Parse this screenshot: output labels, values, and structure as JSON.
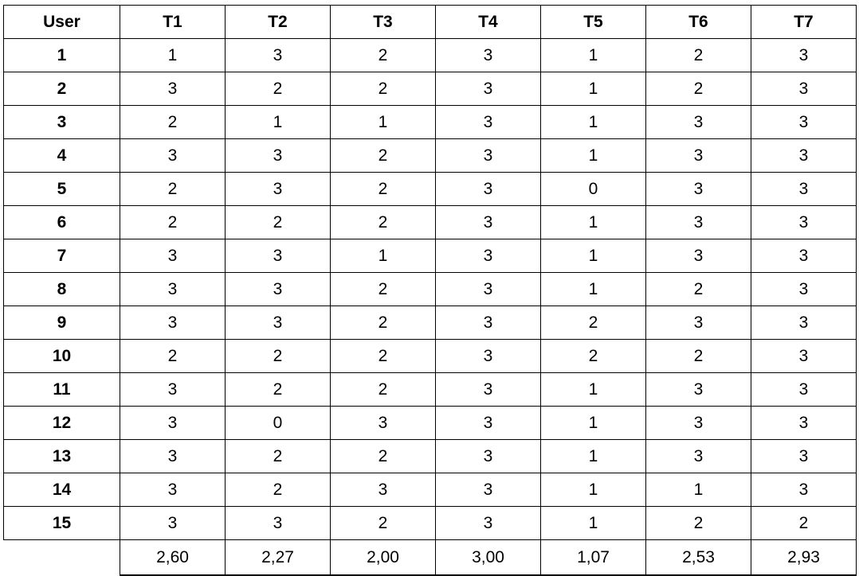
{
  "table": {
    "headers": [
      "User",
      "T1",
      "T2",
      "T3",
      "T4",
      "T5",
      "T6",
      "T7"
    ],
    "rows": [
      [
        "1",
        "1",
        "3",
        "2",
        "3",
        "1",
        "2",
        "3"
      ],
      [
        "2",
        "3",
        "2",
        "2",
        "3",
        "1",
        "2",
        "3"
      ],
      [
        "3",
        "2",
        "1",
        "1",
        "3",
        "1",
        "3",
        "3"
      ],
      [
        "4",
        "3",
        "3",
        "2",
        "3",
        "1",
        "3",
        "3"
      ],
      [
        "5",
        "2",
        "3",
        "2",
        "3",
        "0",
        "3",
        "3"
      ],
      [
        "6",
        "2",
        "2",
        "2",
        "3",
        "1",
        "3",
        "3"
      ],
      [
        "7",
        "3",
        "3",
        "1",
        "3",
        "1",
        "3",
        "3"
      ],
      [
        "8",
        "3",
        "3",
        "2",
        "3",
        "1",
        "2",
        "3"
      ],
      [
        "9",
        "3",
        "3",
        "2",
        "3",
        "2",
        "3",
        "3"
      ],
      [
        "10",
        "2",
        "2",
        "2",
        "3",
        "2",
        "2",
        "3"
      ],
      [
        "11",
        "3",
        "2",
        "2",
        "3",
        "1",
        "3",
        "3"
      ],
      [
        "12",
        "3",
        "0",
        "3",
        "3",
        "1",
        "3",
        "3"
      ],
      [
        "13",
        "3",
        "2",
        "2",
        "3",
        "1",
        "3",
        "3"
      ],
      [
        "14",
        "3",
        "2",
        "3",
        "3",
        "1",
        "1",
        "3"
      ],
      [
        "15",
        "3",
        "3",
        "2",
        "3",
        "1",
        "2",
        "2"
      ]
    ],
    "averages": [
      "2,60",
      "2,27",
      "2,00",
      "3,00",
      "1,07",
      "2,53",
      "2,93"
    ]
  }
}
